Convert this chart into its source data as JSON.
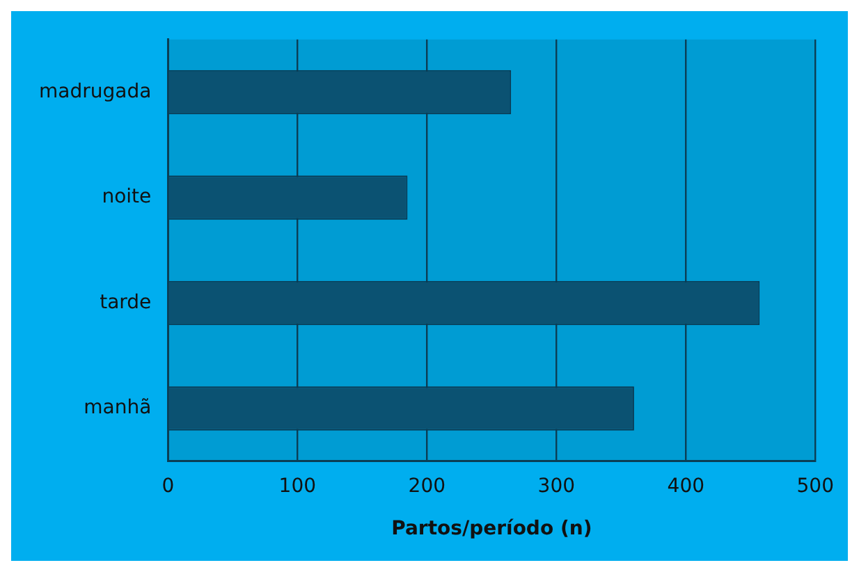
{
  "chart_data": {
    "type": "bar",
    "orientation": "horizontal",
    "xlabel": "Partos/período (n)",
    "categories": [
      "madrugada",
      "noite",
      "tarde",
      "manhã"
    ],
    "values": [
      265,
      185,
      457,
      360
    ],
    "color": "#0b5272",
    "xlim": [
      0,
      500
    ],
    "xticks": [
      0,
      100,
      200,
      300,
      400,
      500
    ],
    "grid": "x",
    "legend": false
  }
}
